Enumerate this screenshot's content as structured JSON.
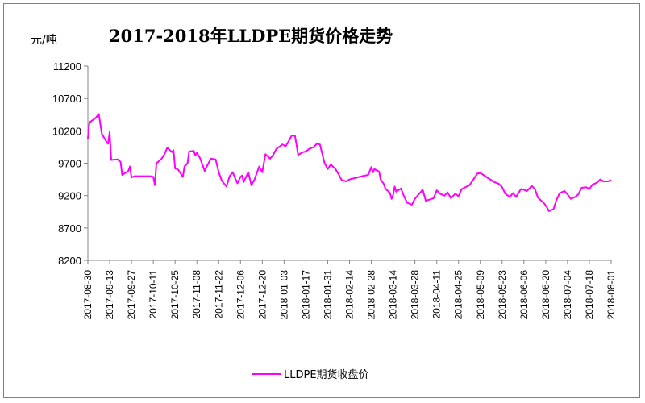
{
  "chart_data": {
    "type": "line",
    "title": "2017-2018年LLDPE期货价格走势",
    "ylabel": "元/吨",
    "xlabel": "",
    "ylim": [
      8200,
      11200
    ],
    "yticks": [
      8200,
      8700,
      9200,
      9700,
      10200,
      10700,
      11200
    ],
    "xticks": [
      "2017-08-30",
      "2017-09-13",
      "2017-09-27",
      "2017-10-11",
      "2017-10-25",
      "2017-11-08",
      "2017-11-22",
      "2017-12-06",
      "2017-12-20",
      "2018-01-03",
      "2018-01-17",
      "2018-01-31",
      "2018-02-14",
      "2018-02-28",
      "2018-03-14",
      "2018-03-28",
      "2018-04-11",
      "2018-04-25",
      "2018-05-09",
      "2018-05-23",
      "2018-06-06",
      "2018-06-20",
      "2018-07-04",
      "2018-07-18",
      "2018-08-01"
    ],
    "xlim": [
      "2017-08-30",
      "2018-08-01"
    ],
    "grid": false,
    "legend_position": "bottom",
    "series": [
      {
        "name": "LLDPE期货收盘价",
        "color": "#ff00ff",
        "points": [
          [
            "2017-08-30",
            10080
          ],
          [
            "2017-08-31",
            10330
          ],
          [
            "2017-09-04",
            10400
          ],
          [
            "2017-09-06",
            10460
          ],
          [
            "2017-09-08",
            10150
          ],
          [
            "2017-09-11",
            10030
          ],
          [
            "2017-09-12",
            10000
          ],
          [
            "2017-09-13",
            10180
          ],
          [
            "2017-09-14",
            9750
          ],
          [
            "2017-09-18",
            9760
          ],
          [
            "2017-09-20",
            9720
          ],
          [
            "2017-09-21",
            9520
          ],
          [
            "2017-09-25",
            9580
          ],
          [
            "2017-09-26",
            9650
          ],
          [
            "2017-09-27",
            9480
          ],
          [
            "2017-09-29",
            9500
          ],
          [
            "2017-10-09",
            9500
          ],
          [
            "2017-10-11",
            9490
          ],
          [
            "2017-10-12",
            9360
          ],
          [
            "2017-10-13",
            9700
          ],
          [
            "2017-10-16",
            9760
          ],
          [
            "2017-10-18",
            9830
          ],
          [
            "2017-10-20",
            9940
          ],
          [
            "2017-10-23",
            9870
          ],
          [
            "2017-10-24",
            9900
          ],
          [
            "2017-10-25",
            9620
          ],
          [
            "2017-10-27",
            9600
          ],
          [
            "2017-10-30",
            9490
          ],
          [
            "2017-10-31",
            9650
          ],
          [
            "2017-11-02",
            9700
          ],
          [
            "2017-11-03",
            9880
          ],
          [
            "2017-11-06",
            9890
          ],
          [
            "2017-11-07",
            9820
          ],
          [
            "2017-11-08",
            9860
          ],
          [
            "2017-11-10",
            9780
          ],
          [
            "2017-11-13",
            9580
          ],
          [
            "2017-11-15",
            9680
          ],
          [
            "2017-11-17",
            9770
          ],
          [
            "2017-11-20",
            9760
          ],
          [
            "2017-11-22",
            9560
          ],
          [
            "2017-11-24",
            9430
          ],
          [
            "2017-11-27",
            9340
          ],
          [
            "2017-11-29",
            9500
          ],
          [
            "2017-12-01",
            9560
          ],
          [
            "2017-12-04",
            9390
          ],
          [
            "2017-12-06",
            9490
          ],
          [
            "2017-12-07",
            9510
          ],
          [
            "2017-12-08",
            9410
          ],
          [
            "2017-12-11",
            9560
          ],
          [
            "2017-12-13",
            9360
          ],
          [
            "2017-12-15",
            9450
          ],
          [
            "2017-12-18",
            9650
          ],
          [
            "2017-12-20",
            9560
          ],
          [
            "2017-12-22",
            9840
          ],
          [
            "2017-12-25",
            9770
          ],
          [
            "2017-12-27",
            9830
          ],
          [
            "2017-12-29",
            9920
          ],
          [
            "2018-01-02",
            9990
          ],
          [
            "2018-01-04",
            9960
          ],
          [
            "2018-01-05",
            10000
          ],
          [
            "2018-01-08",
            10130
          ],
          [
            "2018-01-10",
            10120
          ],
          [
            "2018-01-11",
            9980
          ],
          [
            "2018-01-12",
            9830
          ],
          [
            "2018-01-15",
            9870
          ],
          [
            "2018-01-17",
            9880
          ],
          [
            "2018-01-19",
            9920
          ],
          [
            "2018-01-22",
            9950
          ],
          [
            "2018-01-24",
            10000
          ],
          [
            "2018-01-26",
            9990
          ],
          [
            "2018-01-29",
            9700
          ],
          [
            "2018-01-31",
            9610
          ],
          [
            "2018-02-02",
            9680
          ],
          [
            "2018-02-05",
            9610
          ],
          [
            "2018-02-07",
            9530
          ],
          [
            "2018-02-09",
            9440
          ],
          [
            "2018-02-12",
            9420
          ],
          [
            "2018-02-14",
            9450
          ],
          [
            "2018-02-22",
            9500
          ],
          [
            "2018-02-26",
            9520
          ],
          [
            "2018-02-28",
            9640
          ],
          [
            "2018-03-01",
            9560
          ],
          [
            "2018-03-02",
            9610
          ],
          [
            "2018-03-05",
            9570
          ],
          [
            "2018-03-06",
            9450
          ],
          [
            "2018-03-08",
            9380
          ],
          [
            "2018-03-09",
            9310
          ],
          [
            "2018-03-12",
            9240
          ],
          [
            "2018-03-13",
            9150
          ],
          [
            "2018-03-14",
            9210
          ],
          [
            "2018-03-15",
            9340
          ],
          [
            "2018-03-16",
            9260
          ],
          [
            "2018-03-19",
            9310
          ],
          [
            "2018-03-21",
            9190
          ],
          [
            "2018-03-23",
            9090
          ],
          [
            "2018-03-26",
            9060
          ],
          [
            "2018-03-28",
            9150
          ],
          [
            "2018-03-30",
            9210
          ],
          [
            "2018-04-02",
            9290
          ],
          [
            "2018-04-04",
            9120
          ],
          [
            "2018-04-09",
            9160
          ],
          [
            "2018-04-11",
            9280
          ],
          [
            "2018-04-13",
            9230
          ],
          [
            "2018-04-16",
            9200
          ],
          [
            "2018-04-18",
            9250
          ],
          [
            "2018-04-20",
            9160
          ],
          [
            "2018-04-23",
            9230
          ],
          [
            "2018-04-25",
            9190
          ],
          [
            "2018-04-27",
            9300
          ],
          [
            "2018-05-02",
            9360
          ],
          [
            "2018-05-04",
            9430
          ],
          [
            "2018-05-07",
            9540
          ],
          [
            "2018-05-09",
            9550
          ],
          [
            "2018-05-11",
            9520
          ],
          [
            "2018-05-14",
            9470
          ],
          [
            "2018-05-16",
            9440
          ],
          [
            "2018-05-18",
            9410
          ],
          [
            "2018-05-21",
            9380
          ],
          [
            "2018-05-23",
            9330
          ],
          [
            "2018-05-25",
            9230
          ],
          [
            "2018-05-28",
            9180
          ],
          [
            "2018-05-30",
            9240
          ],
          [
            "2018-06-01",
            9180
          ],
          [
            "2018-06-04",
            9300
          ],
          [
            "2018-06-06",
            9290
          ],
          [
            "2018-06-08",
            9270
          ],
          [
            "2018-06-11",
            9350
          ],
          [
            "2018-06-13",
            9300
          ],
          [
            "2018-06-15",
            9170
          ],
          [
            "2018-06-19",
            9080
          ],
          [
            "2018-06-21",
            9010
          ],
          [
            "2018-06-22",
            8960
          ],
          [
            "2018-06-25",
            8990
          ],
          [
            "2018-06-27",
            9140
          ],
          [
            "2018-06-29",
            9240
          ],
          [
            "2018-07-02",
            9270
          ],
          [
            "2018-07-04",
            9220
          ],
          [
            "2018-07-06",
            9150
          ],
          [
            "2018-07-09",
            9180
          ],
          [
            "2018-07-11",
            9220
          ],
          [
            "2018-07-13",
            9320
          ],
          [
            "2018-07-16",
            9330
          ],
          [
            "2018-07-18",
            9300
          ],
          [
            "2018-07-20",
            9370
          ],
          [
            "2018-07-23",
            9400
          ],
          [
            "2018-07-25",
            9450
          ],
          [
            "2018-07-27",
            9420
          ],
          [
            "2018-07-30",
            9420
          ],
          [
            "2018-08-01",
            9440
          ]
        ]
      }
    ]
  }
}
